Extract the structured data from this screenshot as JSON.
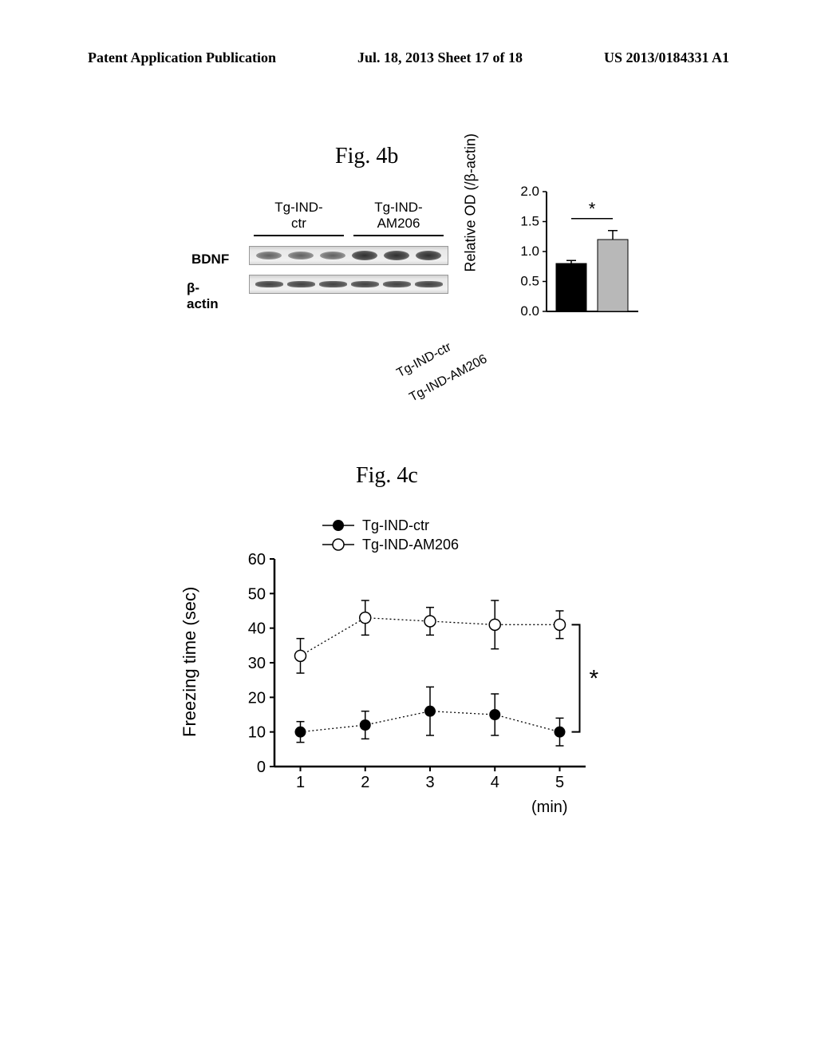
{
  "header": {
    "left": "Patent Application Publication",
    "center": "Jul. 18, 2013  Sheet 17 of 18",
    "right": "US 2013/0184331 A1"
  },
  "fig4b": {
    "title": "Fig. 4b",
    "groups": {
      "g1_line1": "Tg-IND-",
      "g1_line2": "ctr",
      "g2_line1": "Tg-IND-",
      "g2_line2": "AM206"
    },
    "rows": {
      "bdnf": "BDNF",
      "actin": "β-actin"
    },
    "chart": {
      "type": "bar",
      "ylabel": "Relative OD (/β-actin)",
      "ylim": [
        0.0,
        2.0
      ],
      "ytick_step": 0.5,
      "yticks": [
        "0.0",
        "0.5",
        "1.0",
        "1.5",
        "2.0"
      ],
      "bars": [
        {
          "label": "Tg-IND-ctr",
          "value": 0.8,
          "err": 0.05,
          "fill": "#000000"
        },
        {
          "label": "Tg-IND-AM206",
          "value": 1.2,
          "err": 0.15,
          "fill": "#b8b8b8"
        }
      ],
      "sig": "*",
      "axis_color": "#000000",
      "background": "#ffffff",
      "label_fontsize": 18,
      "tick_fontsize": 17
    }
  },
  "fig4c": {
    "title": "Fig. 4c",
    "chart": {
      "type": "line-scatter",
      "ylabel": "Freezing time (sec)",
      "xlabel": "(min)",
      "ylim": [
        0,
        60
      ],
      "ytick_step": 10,
      "yticks": [
        "0",
        "10",
        "20",
        "30",
        "40",
        "50",
        "60"
      ],
      "xlim": [
        1,
        5
      ],
      "xticks": [
        "1",
        "2",
        "3",
        "4",
        "5"
      ],
      "legend": {
        "s1": "Tg-IND-ctr",
        "s2": "Tg-IND-AM206"
      },
      "series": [
        {
          "name": "Tg-IND-ctr",
          "marker": "filled",
          "color": "#000000",
          "points": [
            {
              "x": 1,
              "y": 10,
              "err": 3
            },
            {
              "x": 2,
              "y": 12,
              "err": 4
            },
            {
              "x": 3,
              "y": 16,
              "err": 7
            },
            {
              "x": 4,
              "y": 15,
              "err": 6
            },
            {
              "x": 5,
              "y": 10,
              "err": 4
            }
          ]
        },
        {
          "name": "Tg-IND-AM206",
          "marker": "open",
          "color": "#000000",
          "points": [
            {
              "x": 1,
              "y": 32,
              "err": 5
            },
            {
              "x": 2,
              "y": 43,
              "err": 5
            },
            {
              "x": 3,
              "y": 42,
              "err": 4
            },
            {
              "x": 4,
              "y": 41,
              "err": 7
            },
            {
              "x": 5,
              "y": 41,
              "err": 4
            }
          ]
        }
      ],
      "sig": "*",
      "axis_color": "#000000",
      "line_style": "dotted",
      "marker_size": 7,
      "label_fontsize": 22,
      "tick_fontsize": 20
    }
  }
}
